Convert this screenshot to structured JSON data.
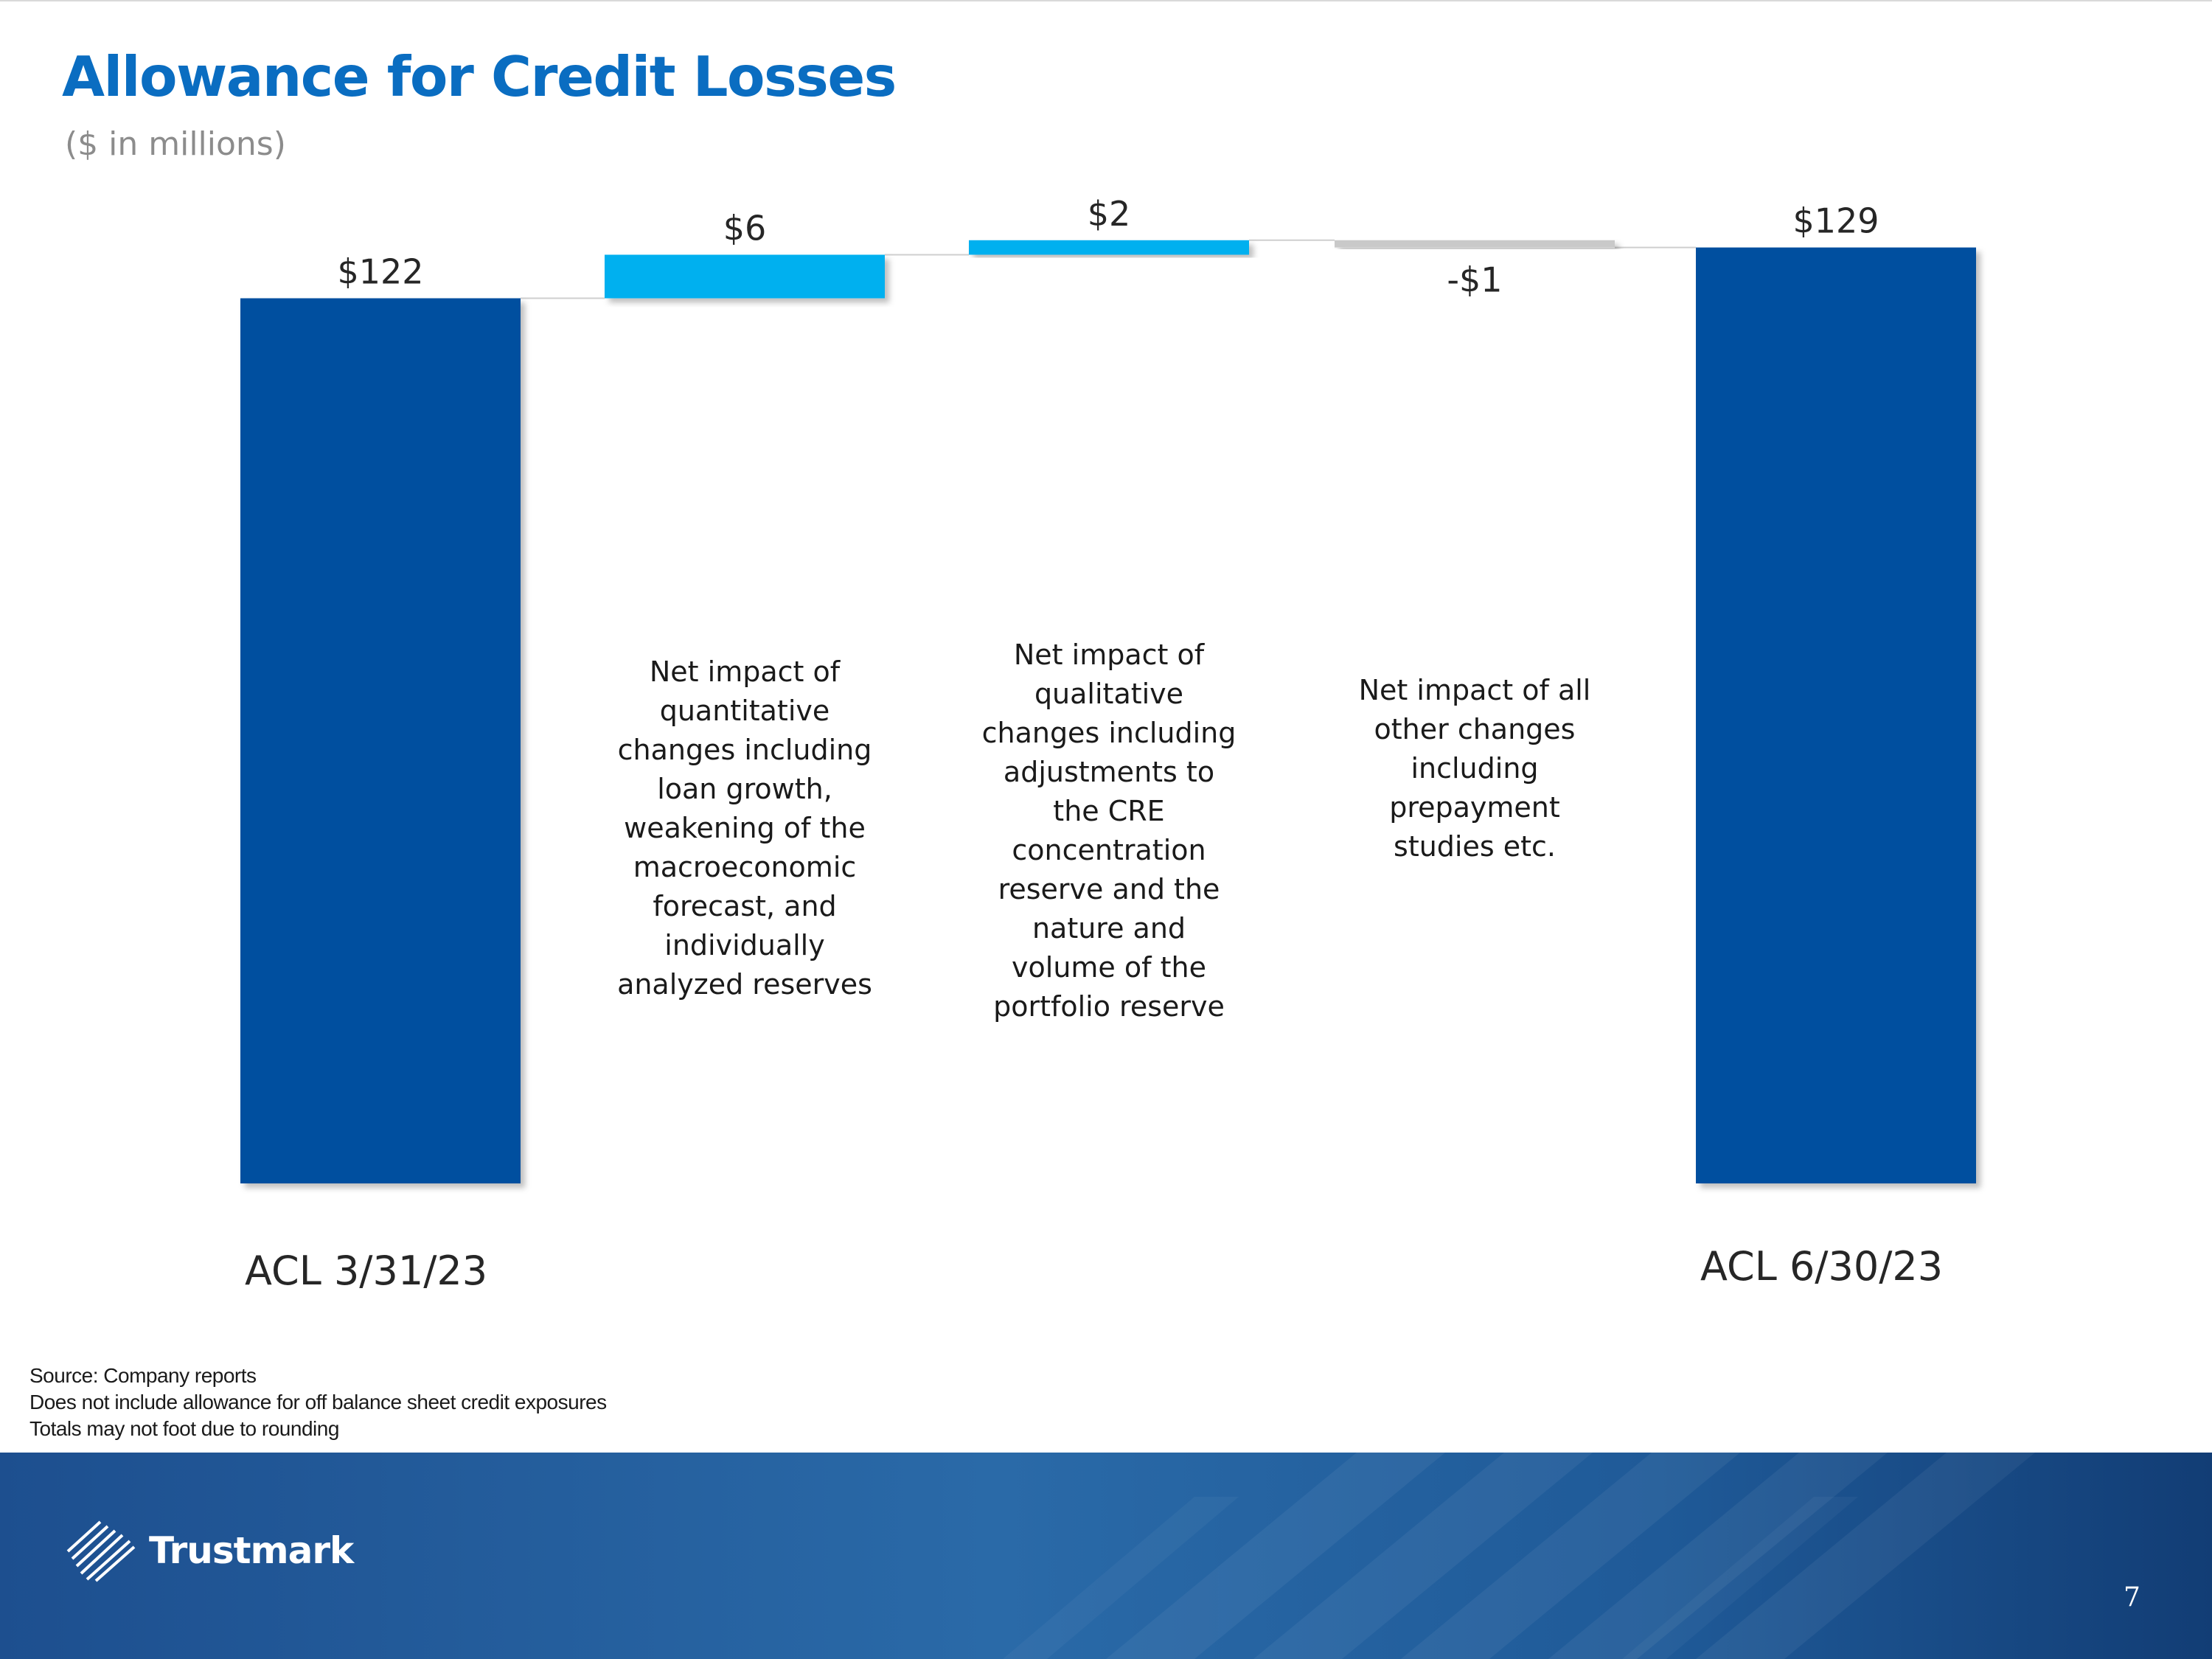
{
  "header": {
    "title": "Allowance for Credit Losses",
    "subtitle": "($ in millions)"
  },
  "colors": {
    "total_bar": "#004f9f",
    "increase_bar": "#00b0ef",
    "decrease_bar": "#c9c9c9",
    "title": "#0a6dc1",
    "connector": "#cfcfcf"
  },
  "chart_data": {
    "type": "waterfall",
    "title": "Allowance for Credit Losses",
    "subtitle": "($ in millions)",
    "categories": [
      "ACL 3/31/23",
      "",
      "",
      "",
      "ACL 6/30/23"
    ],
    "values": [
      122,
      6,
      2,
      -1,
      129
    ],
    "measures": [
      "total",
      "relative",
      "relative",
      "relative",
      "total"
    ],
    "data_labels": [
      "$122",
      "$6",
      "$2",
      "-$1",
      "$129"
    ],
    "annotations": [
      "",
      "Net impact of\nquantitative\nchanges including\nloan growth,\nweakening of the\nmacroeconomic\nforecast, and\nindividually\nanalyzed reserves",
      "Net impact of\nqualitative\nchanges including\nadjustments to\nthe CRE\nconcentration\nreserve and the\nnature and\nvolume of the\nportfolio reserve",
      "Net impact of all\nother changes\nincluding\nprepayment\nstudies etc.",
      ""
    ],
    "ylim": [
      0,
      133
    ],
    "grid": false,
    "legend": "none"
  },
  "footnotes": [
    "Source: Company reports",
    "Does not include allowance for off balance sheet credit exposures",
    "Totals may not foot due to rounding"
  ],
  "footer": {
    "brand": "Trustmark",
    "page_number": "7",
    "logo_icon": "trustmark-logo-icon"
  }
}
